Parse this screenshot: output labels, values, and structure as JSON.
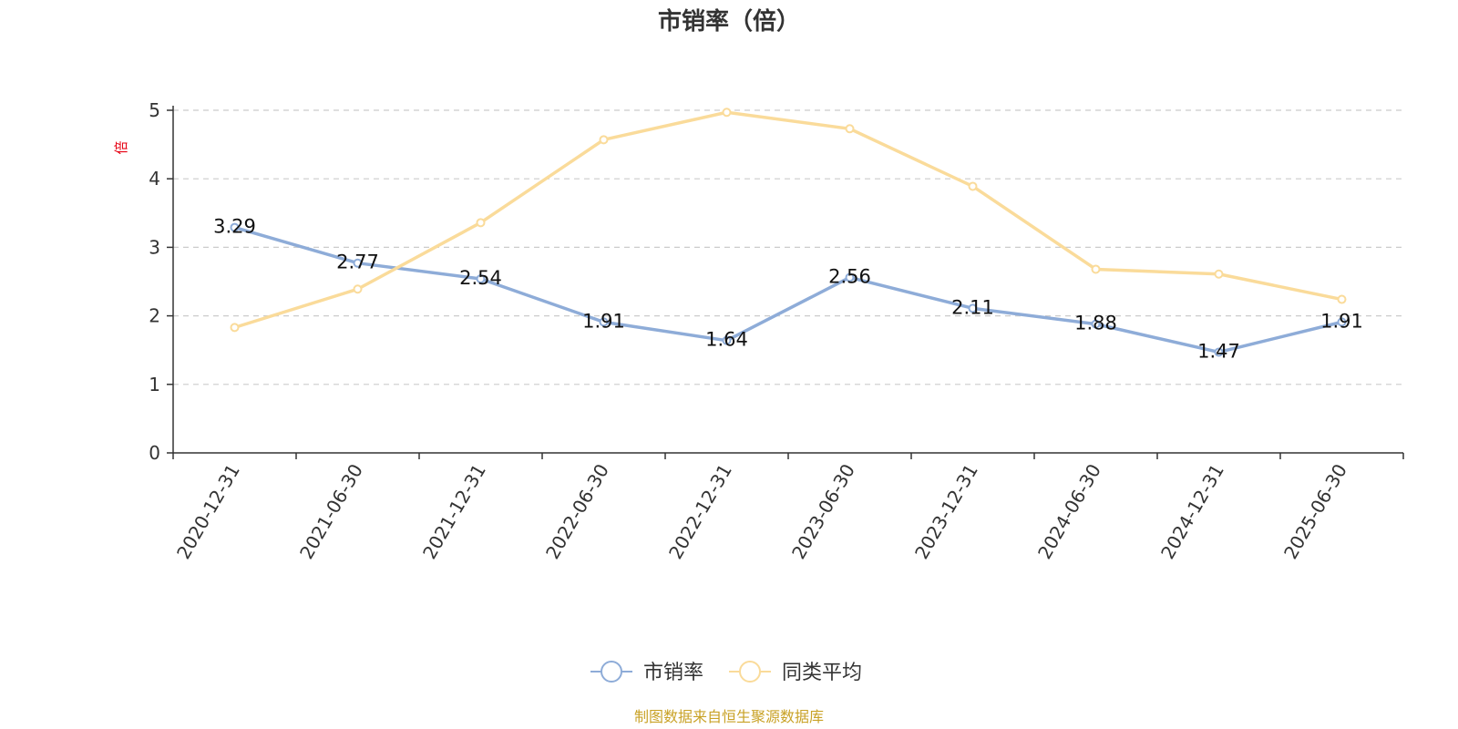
{
  "chart_data": {
    "type": "line",
    "title": "市销率（倍）",
    "unit_label": "倍",
    "categories": [
      "2020-12-31",
      "2021-06-30",
      "2021-12-31",
      "2022-06-30",
      "2022-12-31",
      "2023-06-30",
      "2023-12-31",
      "2024-06-30",
      "2024-12-31",
      "2025-06-30"
    ],
    "ylim": [
      0,
      5
    ],
    "yticks": [
      0,
      1,
      2,
      3,
      4,
      5
    ],
    "grid": true,
    "legend_position": "bottom",
    "series": [
      {
        "name": "市销率",
        "color": "#8eacd8",
        "show_labels": true,
        "values": [
          3.29,
          2.77,
          2.54,
          1.91,
          1.64,
          2.56,
          2.11,
          1.88,
          1.47,
          1.91
        ]
      },
      {
        "name": "同类平均",
        "color": "#fadb9a",
        "show_labels": false,
        "values": [
          1.83,
          2.39,
          3.36,
          4.57,
          4.97,
          4.73,
          3.89,
          2.68,
          2.61,
          2.24
        ]
      }
    ],
    "source_note": "制图数据来自恒生聚源数据库"
  }
}
